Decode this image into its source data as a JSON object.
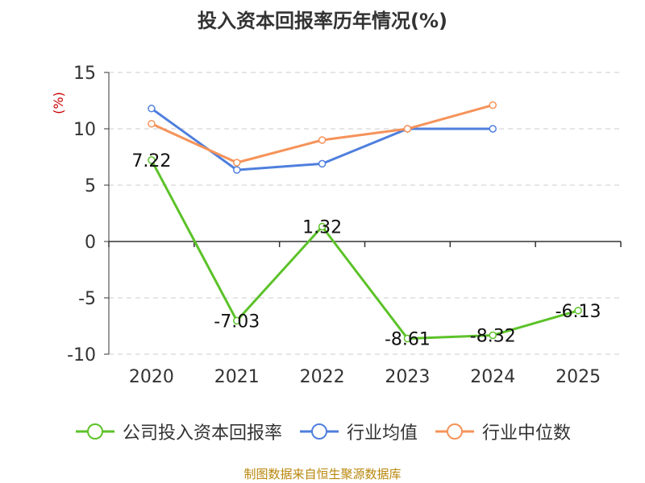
{
  "chart_data": {
    "type": "line",
    "title": "投入资本回报率历年情况(%)",
    "ylabel": "(%)",
    "categories": [
      "2020",
      "2021",
      "2022",
      "2023",
      "2024",
      "2025"
    ],
    "ylim": [
      -10,
      15
    ],
    "yticks": [
      15,
      10,
      5,
      0,
      -5,
      -10
    ],
    "grid": true,
    "legend_position": "bottom",
    "series": [
      {
        "name": "公司投入资本回报率",
        "color": "#5cc229",
        "values": [
          7.22,
          -7.03,
          1.32,
          -8.61,
          -8.32,
          -6.13
        ],
        "labels": [
          "7.22",
          "-7.03",
          "1.32",
          "-8.61",
          "-8.32",
          "-6.13"
        ]
      },
      {
        "name": "行业均值",
        "color": "#4f7fdd",
        "values": [
          11.8,
          6.35,
          6.9,
          10.0,
          10.0,
          null
        ]
      },
      {
        "name": "行业中位数",
        "color": "#f5935a",
        "values": [
          10.45,
          7.0,
          9.0,
          10.0,
          12.1,
          null
        ]
      }
    ]
  },
  "footer": {
    "source": "制图数据来自恒生聚源数据库"
  }
}
